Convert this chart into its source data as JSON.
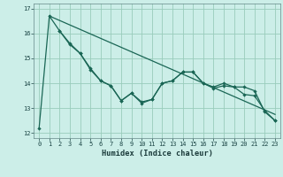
{
  "title": "",
  "xlabel": "Humidex (Indice chaleur)",
  "ylabel": "",
  "bg_color": "#cceee8",
  "grid_color": "#99ccbb",
  "line_color": "#1a6655",
  "xlim": [
    -0.5,
    23.5
  ],
  "ylim": [
    11.8,
    17.2
  ],
  "yticks": [
    12,
    13,
    14,
    15,
    16,
    17
  ],
  "xticks": [
    0,
    1,
    2,
    3,
    4,
    5,
    6,
    7,
    8,
    9,
    10,
    11,
    12,
    13,
    14,
    15,
    16,
    17,
    18,
    19,
    20,
    21,
    22,
    23
  ],
  "line1_x": [
    0,
    1,
    2,
    3,
    4,
    5,
    6,
    7,
    8,
    9,
    10,
    11,
    12,
    13,
    14,
    15,
    16,
    17,
    18,
    19,
    20,
    21,
    22,
    23
  ],
  "line1_y": [
    12.2,
    16.7,
    16.1,
    15.6,
    15.2,
    14.6,
    14.1,
    13.9,
    13.3,
    13.6,
    13.2,
    13.35,
    14.0,
    14.1,
    14.45,
    14.45,
    14.0,
    13.8,
    13.9,
    13.85,
    13.85,
    13.7,
    12.85,
    12.5
  ],
  "line2_x": [
    2,
    3,
    4,
    5,
    6,
    7,
    8,
    9,
    10,
    11,
    12,
    13,
    14,
    15,
    16,
    17,
    18,
    19,
    20,
    21,
    22,
    23
  ],
  "line2_y": [
    16.1,
    15.55,
    15.2,
    14.55,
    14.1,
    13.9,
    13.3,
    13.6,
    13.25,
    13.35,
    14.0,
    14.1,
    14.45,
    14.45,
    14.0,
    13.85,
    14.0,
    13.85,
    13.55,
    13.5,
    12.9,
    12.5
  ],
  "line3_x": [
    1,
    23
  ],
  "line3_y": [
    16.7,
    12.75
  ]
}
